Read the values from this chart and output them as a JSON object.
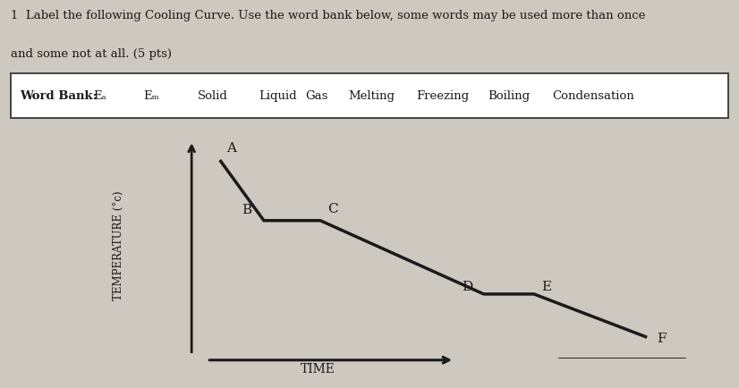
{
  "title_line1": "1  Label the following Cooling Curve. Use the word bank below, some words may be used more than once",
  "title_line2": "and some not at all. (5 pts)",
  "word_bank_label": "Word Bank:",
  "word_bank_items": [
    "Eₐ",
    "Eₘ",
    "Solid",
    "Liquid",
    "Gas",
    "Melting",
    "Freezing",
    "Boiling",
    "Condensation"
  ],
  "xlabel": "TIME",
  "ylabel": "TEMPERATURE (°c)",
  "background_color": "#cdc8c0",
  "curve_color": "#1a1a1a",
  "curve_linewidth": 2.5,
  "curve_x": [
    1.0,
    1.7,
    2.6,
    5.2,
    6.0,
    7.8
  ],
  "curve_y": [
    9.2,
    6.4,
    6.4,
    3.0,
    3.0,
    1.0
  ],
  "point_labels": [
    "A",
    "B",
    "C",
    "D",
    "E",
    "F"
  ],
  "point_label_offsets_x": [
    0.1,
    -0.35,
    0.12,
    -0.35,
    0.12,
    0.15
  ],
  "point_label_offsets_y": [
    0.25,
    0.18,
    0.22,
    0.05,
    0.05,
    -0.35
  ],
  "font_size_labels": 10,
  "font_size_title": 9.5,
  "word_bank_fontsize": 9.5,
  "axis_linewidth": 2.0,
  "xlim": [
    0.5,
    8.5
  ],
  "ylim": [
    0.0,
    10.5
  ],
  "word_bank_box_color": "#ffffff",
  "word_bank_box_edge": "#444444",
  "wb_positions": [
    0.115,
    0.185,
    0.26,
    0.345,
    0.41,
    0.47,
    0.565,
    0.665,
    0.755
  ]
}
